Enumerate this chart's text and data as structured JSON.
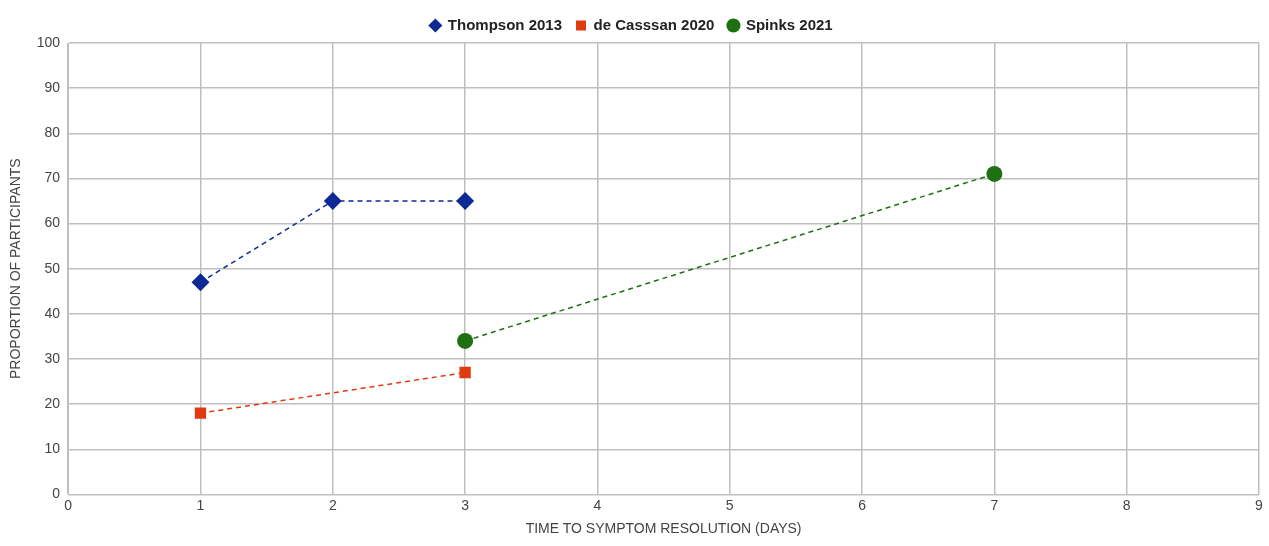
{
  "chart_data": {
    "type": "line",
    "xlabel": "TIME TO SYMPTOM RESOLUTION (DAYS)",
    "ylabel": "PROPORTION OF PARTICIPANTS",
    "series": [
      {
        "name": "Thompson 2013",
        "color": "#0d2a94",
        "marker": "diamond",
        "x": [
          1,
          2,
          3
        ],
        "values": [
          47,
          65,
          65
        ]
      },
      {
        "name": "de Casssan 2020",
        "color": "#e03a10",
        "marker": "square",
        "x": [
          1,
          3
        ],
        "values": [
          18,
          27
        ]
      },
      {
        "name": "Spinks 2021",
        "color": "#1e7012",
        "marker": "circle",
        "x": [
          3,
          7
        ],
        "values": [
          34,
          71
        ]
      }
    ],
    "xlim": [
      0,
      9
    ],
    "xticks": [
      0,
      1,
      2,
      3,
      4,
      5,
      6,
      7,
      8,
      9
    ],
    "ylim": [
      0,
      100
    ],
    "yticks": [
      0,
      10,
      20,
      30,
      40,
      50,
      60,
      70,
      80,
      90,
      100
    ],
    "grid": true,
    "legend": "top",
    "line_style": "dashed"
  }
}
